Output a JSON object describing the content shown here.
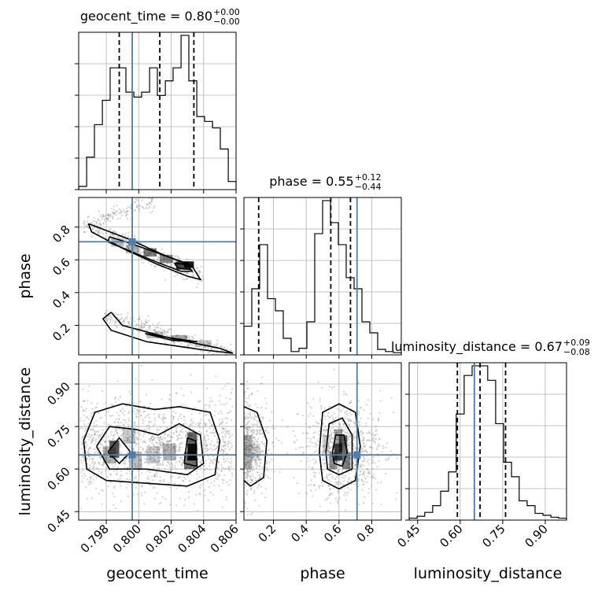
{
  "chart_data": {
    "type": "corner",
    "parameters": [
      "geocent_time",
      "phase",
      "luminosity_distance"
    ],
    "truths": {
      "geocent_time": 0.7996,
      "phase": 0.71,
      "luminosity_distance": 0.65
    },
    "titles": [
      {
        "parameter": "geocent_time",
        "text": "geocent_time = 0.80",
        "sup": "+0.00",
        "sub": "−0.00"
      },
      {
        "parameter": "phase",
        "text": "phase = 0.55",
        "sup": "+0.12",
        "sub": "−0.44"
      },
      {
        "parameter": "luminosity_distance",
        "text": "luminosity_distance = 0.67",
        "sup": "+0.09",
        "sub": "−0.08"
      }
    ],
    "axes": {
      "geocent_time": {
        "range": [
          0.7963,
          0.806
        ],
        "ticks": [
          0.798,
          0.8,
          0.802,
          0.804,
          0.806
        ],
        "tick_labels": [
          "0.798",
          "0.800",
          "0.802",
          "0.804",
          "0.806"
        ],
        "label": "geocent_time"
      },
      "phase": {
        "range": [
          0.02,
          0.98
        ],
        "ticks": [
          0.2,
          0.4,
          0.6,
          0.8
        ],
        "tick_labels": [
          "0.2",
          "0.4",
          "0.6",
          "0.8"
        ],
        "label": "phase"
      },
      "luminosity_distance": {
        "range": [
          0.42,
          0.975
        ],
        "ticks": [
          0.45,
          0.6,
          0.75,
          0.9
        ],
        "tick_labels": [
          "0.45",
          "0.60",
          "0.75",
          "0.90"
        ],
        "label": "luminosity_distance"
      }
    },
    "histograms": [
      {
        "parameter": "geocent_time",
        "bin_edges": [
          0.7963,
          0.79679,
          0.79727,
          0.79776,
          0.79824,
          0.79873,
          0.79921,
          0.7997,
          0.80018,
          0.80067,
          0.80115,
          0.80164,
          0.80212,
          0.80261,
          0.80309,
          0.80358,
          0.80406,
          0.80455,
          0.80503,
          0.80552,
          0.806
        ],
        "counts": [
          2,
          20,
          40,
          55,
          75,
          75,
          60,
          57,
          60,
          75,
          58,
          67,
          75,
          95,
          67,
          45,
          42,
          38,
          25,
          5
        ],
        "quantiles": [
          0.7988,
          0.8013,
          0.8034
        ]
      },
      {
        "parameter": "phase",
        "bin_edges": [
          0.02,
          0.068,
          0.116,
          0.164,
          0.212,
          0.26,
          0.308,
          0.356,
          0.404,
          0.452,
          0.5,
          0.548,
          0.596,
          0.644,
          0.692,
          0.74,
          0.788,
          0.836,
          0.884,
          0.932,
          0.98
        ],
        "counts": [
          26,
          60,
          100,
          51,
          40,
          15,
          3,
          6,
          30,
          110,
          140,
          120,
          100,
          70,
          60,
          30,
          20,
          5,
          3,
          2
        ],
        "quantiles": [
          0.11,
          0.55,
          0.67
        ]
      },
      {
        "parameter": "luminosity_distance",
        "bin_edges": [
          0.42,
          0.448,
          0.475,
          0.503,
          0.531,
          0.559,
          0.586,
          0.614,
          0.642,
          0.67,
          0.697,
          0.725,
          0.753,
          0.781,
          0.808,
          0.836,
          0.864,
          0.892,
          0.92,
          0.947,
          0.975
        ],
        "counts": [
          2,
          4,
          8,
          15,
          30,
          50,
          110,
          150,
          160,
          160,
          145,
          100,
          60,
          45,
          20,
          15,
          7,
          5,
          3,
          2
        ],
        "quantiles": [
          0.59,
          0.67,
          0.76
        ]
      }
    ],
    "pair_panels": [
      {
        "x": "geocent_time",
        "y": "phase",
        "contours": [
          [
            [
              0.7969,
              0.82
            ],
            [
              0.7993,
              0.73
            ],
            [
              0.8013,
              0.64
            ],
            [
              0.8033,
              0.56
            ],
            [
              0.8038,
              0.48
            ],
            [
              0.803,
              0.5
            ],
            [
              0.8012,
              0.57
            ],
            [
              0.799,
              0.67
            ],
            [
              0.7971,
              0.77
            ],
            [
              0.7969,
              0.82
            ]
          ],
          [
            [
              0.7982,
              0.74
            ],
            [
              0.7995,
              0.7
            ],
            [
              0.8012,
              0.64
            ],
            [
              0.8029,
              0.58
            ],
            [
              0.8033,
              0.53
            ],
            [
              0.8026,
              0.53
            ],
            [
              0.801,
              0.59
            ],
            [
              0.7993,
              0.66
            ],
            [
              0.7981,
              0.71
            ],
            [
              0.7982,
              0.74
            ]
          ],
          [
            [
              0.8022,
              0.58
            ],
            [
              0.803,
              0.57
            ],
            [
              0.8032,
              0.54
            ],
            [
              0.8024,
              0.55
            ],
            [
              0.8022,
              0.58
            ]
          ],
          [
            [
              0.7983,
              0.28
            ],
            [
              0.799,
              0.2
            ],
            [
              0.802,
              0.12
            ],
            [
              0.805,
              0.06
            ],
            [
              0.8058,
              0.03
            ],
            [
              0.804,
              0.05
            ],
            [
              0.8005,
              0.1
            ],
            [
              0.7983,
              0.17
            ],
            [
              0.7978,
              0.24
            ],
            [
              0.7983,
              0.28
            ]
          ],
          [
            [
              0.8004,
              0.15
            ],
            [
              0.8022,
              0.12
            ],
            [
              0.8036,
              0.1
            ],
            [
              0.802,
              0.11
            ],
            [
              0.8004,
              0.15
            ]
          ]
        ]
      },
      {
        "x": "geocent_time",
        "y": "luminosity_distance",
        "contours": [
          [
            [
              0.7966,
              0.7
            ],
            [
              0.7973,
              0.8
            ],
            [
              0.799,
              0.83
            ],
            [
              0.801,
              0.81
            ],
            [
              0.8025,
              0.82
            ],
            [
              0.8044,
              0.8
            ],
            [
              0.805,
              0.7
            ],
            [
              0.8047,
              0.58
            ],
            [
              0.803,
              0.54
            ],
            [
              0.8005,
              0.55
            ],
            [
              0.798,
              0.56
            ],
            [
              0.7968,
              0.6
            ],
            [
              0.7966,
              0.7
            ]
          ],
          [
            [
              0.7974,
              0.68
            ],
            [
              0.7982,
              0.75
            ],
            [
              0.7998,
              0.74
            ],
            [
              0.8012,
              0.72
            ],
            [
              0.8025,
              0.76
            ],
            [
              0.8038,
              0.72
            ],
            [
              0.804,
              0.62
            ],
            [
              0.803,
              0.58
            ],
            [
              0.8005,
              0.6
            ],
            [
              0.7982,
              0.6
            ],
            [
              0.7974,
              0.68
            ]
          ],
          [
            [
              0.7981,
              0.66
            ],
            [
              0.7988,
              0.71
            ],
            [
              0.7995,
              0.66
            ],
            [
              0.7988,
              0.62
            ],
            [
              0.7981,
              0.66
            ]
          ],
          [
            [
              0.8028,
              0.62
            ],
            [
              0.803,
              0.71
            ],
            [
              0.8035,
              0.7
            ],
            [
              0.8036,
              0.61
            ],
            [
              0.8028,
              0.62
            ]
          ]
        ]
      },
      {
        "x": "phase",
        "y": "luminosity_distance",
        "contours": [
          [
            [
              0.02,
              0.82
            ],
            [
              0.1,
              0.8
            ],
            [
              0.16,
              0.7
            ],
            [
              0.14,
              0.57
            ],
            [
              0.06,
              0.54
            ],
            [
              0.02,
              0.56
            ]
          ],
          [
            [
              0.48,
              0.66
            ],
            [
              0.5,
              0.8
            ],
            [
              0.6,
              0.83
            ],
            [
              0.7,
              0.8
            ],
            [
              0.73,
              0.68
            ],
            [
              0.7,
              0.56
            ],
            [
              0.6,
              0.53
            ],
            [
              0.5,
              0.56
            ],
            [
              0.48,
              0.66
            ]
          ],
          [
            [
              0.52,
              0.66
            ],
            [
              0.54,
              0.76
            ],
            [
              0.62,
              0.78
            ],
            [
              0.68,
              0.72
            ],
            [
              0.68,
              0.6
            ],
            [
              0.6,
              0.58
            ],
            [
              0.53,
              0.6
            ],
            [
              0.52,
              0.66
            ]
          ],
          [
            [
              0.56,
              0.66
            ],
            [
              0.58,
              0.72
            ],
            [
              0.63,
              0.72
            ],
            [
              0.65,
              0.66
            ],
            [
              0.62,
              0.61
            ],
            [
              0.57,
              0.62
            ],
            [
              0.56,
              0.66
            ]
          ]
        ]
      }
    ]
  }
}
